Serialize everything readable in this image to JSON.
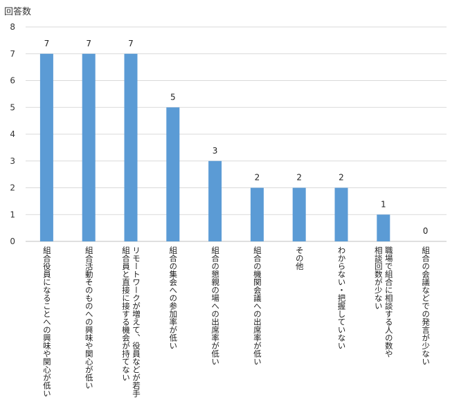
{
  "chart_data": {
    "type": "bar",
    "ylabel": "回答数",
    "ylim": [
      0,
      8
    ],
    "yticks": [
      0,
      1,
      2,
      3,
      4,
      5,
      6,
      7,
      8
    ],
    "grid": true,
    "bar_color": "#5b9bd5",
    "categories": [
      [
        "組合役員になることへの興味や関心が低い"
      ],
      [
        "組合活動そのものへの興味や関心が低い"
      ],
      [
        "リモートワークが増えて、役員などが若手",
        "組合員と直接に接する機会が持てない"
      ],
      [
        "組合の集会への参加率が低い"
      ],
      [
        "組合の懇親の場への出席率が低い"
      ],
      [
        "組合の機関会議への出席率が低い"
      ],
      [
        "その他"
      ],
      [
        "わからない・把握していない"
      ],
      [
        "職場で組合に相談する人の数や",
        "相談回数が少ない"
      ],
      [
        "組合の会議などでの発言が少ない"
      ]
    ],
    "values": [
      7,
      7,
      7,
      5,
      3,
      2,
      2,
      2,
      1,
      0
    ]
  }
}
